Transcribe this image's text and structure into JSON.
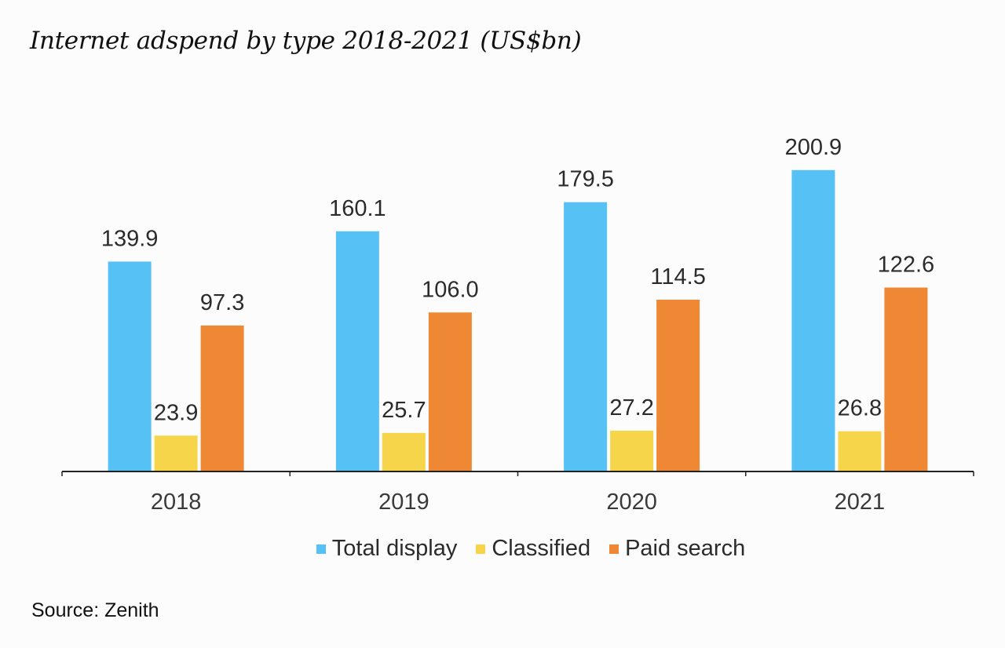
{
  "chart_data": {
    "type": "bar",
    "title": "Internet adspend by type 2018-2021 (US$bn)",
    "categories": [
      "2018",
      "2019",
      "2020",
      "2021"
    ],
    "series": [
      {
        "name": "Total display",
        "color": "#56c1f5",
        "values": [
          139.9,
          160.1,
          179.5,
          200.9
        ],
        "labels": [
          "139.9",
          "160.1",
          "179.5",
          "200.9"
        ]
      },
      {
        "name": "Classified",
        "color": "#f7d54a",
        "values": [
          23.9,
          25.7,
          27.2,
          26.8
        ],
        "labels": [
          "23.9",
          "25.7",
          "27.2",
          "26.8"
        ]
      },
      {
        "name": "Paid search",
        "color": "#ef8834",
        "values": [
          97.3,
          106.0,
          114.5,
          122.6
        ],
        "labels": [
          "97.3",
          "106.0",
          "114.5",
          "122.6"
        ]
      }
    ],
    "xlabel": "",
    "ylabel": "",
    "ylim": [
      0,
      210
    ],
    "grid": false,
    "legend_position": "bottom"
  },
  "source": "Source: Zenith"
}
